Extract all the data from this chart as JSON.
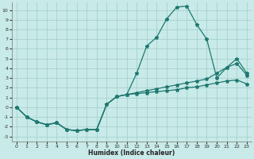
{
  "xlabel": "Humidex (Indice chaleur)",
  "bg_color": "#c8eae8",
  "grid_color": "#a0ccc8",
  "line_color": "#1f7870",
  "spine_color": "#888888",
  "xlim": [
    -0.5,
    23.5
  ],
  "ylim": [
    -3.5,
    10.8
  ],
  "xticks": [
    0,
    1,
    2,
    3,
    4,
    5,
    6,
    7,
    8,
    9,
    10,
    11,
    12,
    13,
    14,
    15,
    16,
    17,
    18,
    19,
    20,
    21,
    22,
    23
  ],
  "yticks": [
    -3,
    -2,
    -1,
    0,
    1,
    2,
    3,
    4,
    5,
    6,
    7,
    8,
    9,
    10
  ],
  "line_peak": [
    0.0,
    -1.0,
    -1.5,
    -1.8,
    -1.6,
    -2.3,
    -2.4,
    -2.3,
    -2.3,
    0.3,
    1.1,
    1.3,
    3.5,
    6.3,
    7.2,
    9.1,
    10.3,
    10.4,
    8.5,
    7.0,
    null,
    null,
    null,
    null
  ],
  "line_upper": [
    null,
    null,
    null,
    null,
    null,
    null,
    null,
    null,
    null,
    null,
    null,
    null,
    null,
    null,
    null,
    null,
    null,
    null,
    null,
    null,
    3.0,
    4.1,
    5.0,
    3.5
  ],
  "line_mid": [
    0.0,
    -1.0,
    -1.5,
    -1.8,
    -1.6,
    -2.3,
    -2.4,
    -2.3,
    -2.3,
    0.3,
    1.1,
    1.3,
    1.5,
    1.7,
    1.9,
    2.1,
    2.3,
    2.5,
    2.7,
    2.9,
    3.5,
    4.1,
    4.5,
    3.3
  ],
  "line_low": [
    0.0,
    -1.0,
    -1.5,
    -1.8,
    -1.6,
    -2.3,
    -2.4,
    -2.3,
    -2.3,
    0.3,
    1.1,
    1.3,
    1.4,
    1.5,
    1.6,
    1.7,
    1.8,
    2.0,
    2.1,
    2.3,
    2.5,
    2.7,
    2.8,
    2.4
  ]
}
